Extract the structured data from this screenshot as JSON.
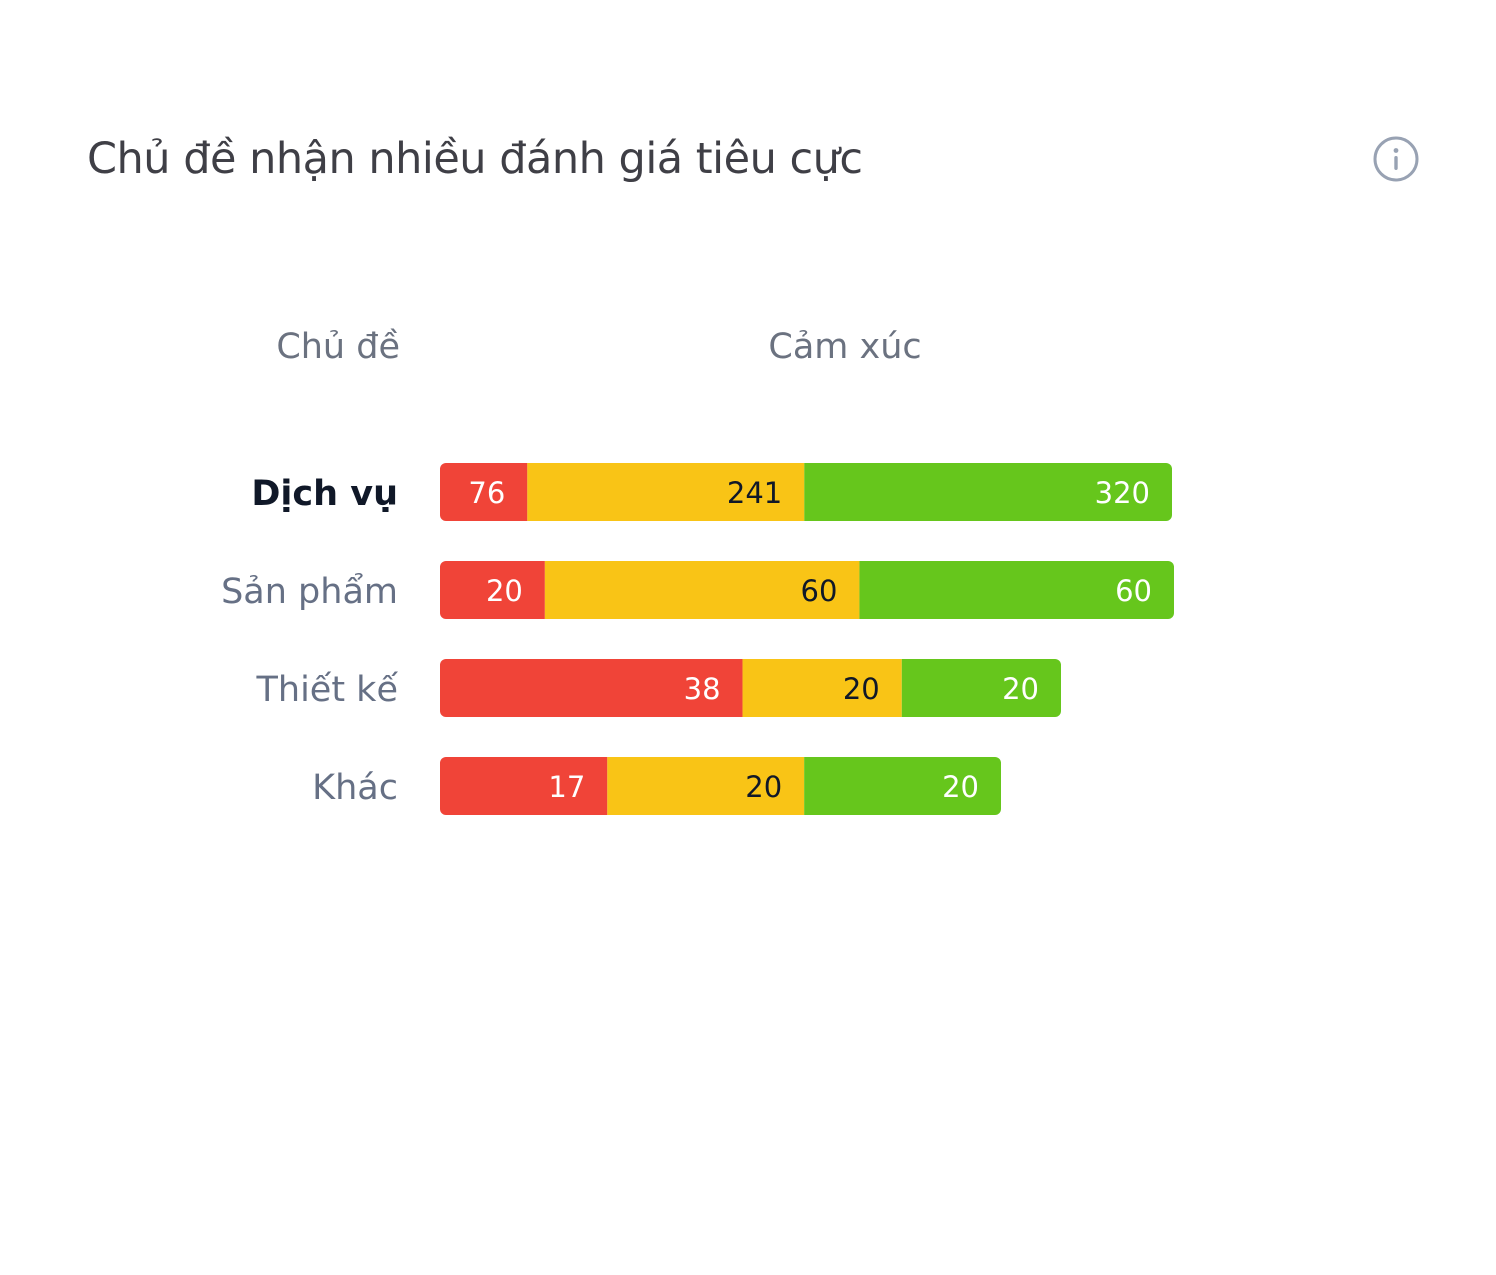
{
  "card": {
    "title": "Chủ đề nhận nhiều đánh giá tiêu cực",
    "info_icon": "info-circle-icon"
  },
  "columns": {
    "topic_header": "Chủ đề",
    "sentiment_header": "Cảm xúc"
  },
  "colors": {
    "negative": "#f04438",
    "neutral": "#f9c416",
    "positive": "#66c61c",
    "label_active": "#101828",
    "label_default": "#667085",
    "value_on_negative": "#ffffff",
    "value_on_neutral": "#101828",
    "value_on_positive": "#ffffff"
  },
  "chart_data": {
    "type": "bar",
    "orientation": "horizontal",
    "stacked": true,
    "categories": [
      "Dịch vụ",
      "Sản phẩm",
      "Thiết kế",
      "Khác"
    ],
    "active_category": "Dịch vụ",
    "series": [
      {
        "key": "negative",
        "values": [
          76,
          20,
          38,
          17
        ]
      },
      {
        "key": "neutral",
        "values": [
          241,
          60,
          20,
          20
        ]
      },
      {
        "key": "positive",
        "values": [
          320,
          60,
          20,
          20
        ]
      }
    ],
    "grid": false,
    "legend": "none"
  }
}
